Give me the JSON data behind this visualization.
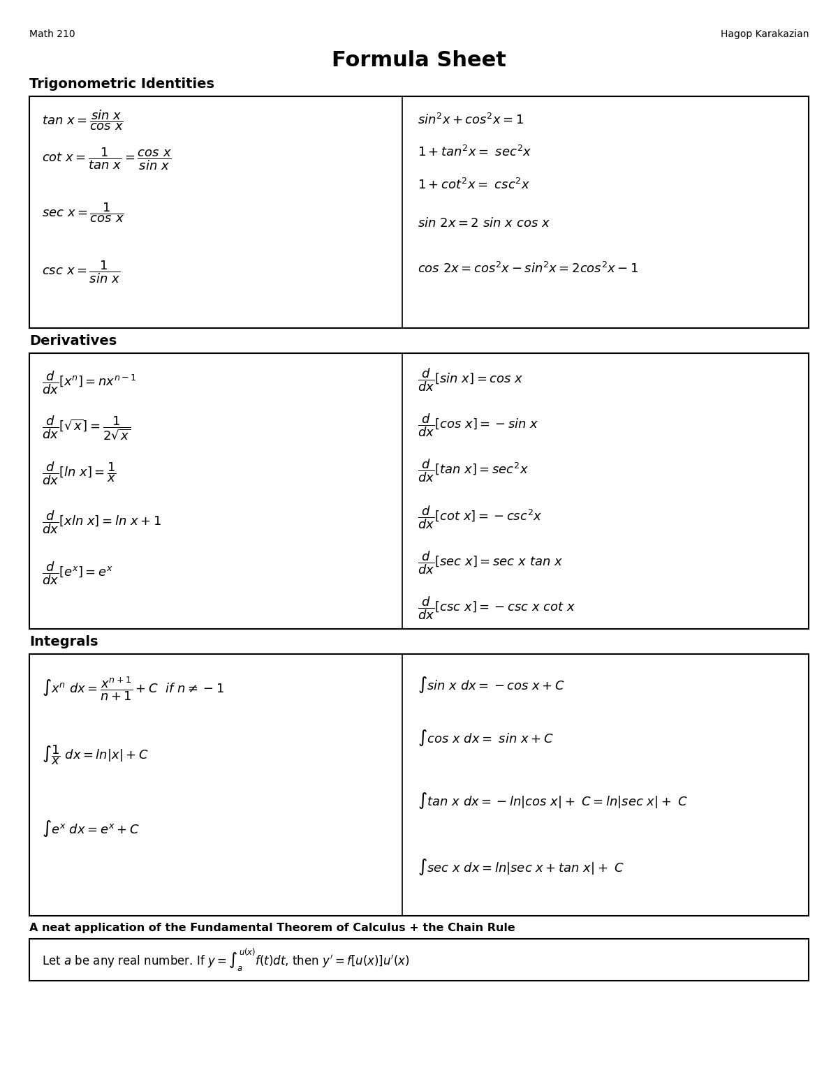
{
  "title": "Formula Sheet",
  "header_left": "Math 210",
  "header_right": "Hagop Karakazian",
  "bg_color": "#ffffff",
  "text_color": "#000000",
  "section_trig": "Trigonometric Identities",
  "section_deriv": "Derivatives",
  "section_integ": "Integrals",
  "section_ftc": "A neat application of the Fundamental Theorem of Calculus + the Chain Rule",
  "trig_left": [
    "$tan\\ x = \\dfrac{sin\\ x}{cos\\ x}$",
    "$cot\\ x = \\dfrac{1}{tan\\ x} = \\dfrac{cos\\ x}{sin\\ x}$",
    "$sec\\ x = \\dfrac{1}{cos\\ x}$",
    "$csc\\ x = \\dfrac{1}{sin\\ x}$"
  ],
  "trig_right": [
    "$sin^2x + cos^2x = 1$",
    "$1 + tan^2x =\\ sec^2x$",
    "$1 + cot^2x =\\ csc^2x$",
    "$sin\\ 2x = 2\\ sin\\ x\\ cos\\ x$",
    "$cos\\ 2x = cos^2x - sin^2x = 2cos^2x - 1$"
  ],
  "deriv_left": [
    "$\\dfrac{d}{dx}[x^n] = nx^{n-1}$",
    "$\\dfrac{d}{dx}[\\sqrt{x}] = \\dfrac{1}{2\\sqrt{x}}$",
    "$\\dfrac{d}{dx}[ln\\ x] = \\dfrac{1}{x}$",
    "$\\dfrac{d}{dx}[xln\\ x] = ln\\ x + 1$",
    "$\\dfrac{d}{dx}[e^x] = e^x$"
  ],
  "deriv_right": [
    "$\\dfrac{d}{dx}[sin\\ x] = cos\\ x$",
    "$\\dfrac{d}{dx}[cos\\ x] = -sin\\ x$",
    "$\\dfrac{d}{dx}[tan\\ x] = sec^2x$",
    "$\\dfrac{d}{dx}[cot\\ x] = -csc^2x$",
    "$\\dfrac{d}{dx}[sec\\ x] = sec\\ x\\ tan\\ x$",
    "$\\dfrac{d}{dx}[csc\\ x] = -csc\\ x\\ cot\\ x$"
  ],
  "integ_left": [
    "$\\int x^n\\ dx = \\dfrac{x^{n+1}}{n+1} + C\\ \\ if\\ n \\neq -1$",
    "$\\int \\dfrac{1}{x}\\ dx = ln|x| + C$",
    "$\\int e^x\\ dx = e^x + C$"
  ],
  "integ_right": [
    "$\\int sin\\ x\\ dx = -cos\\ x + C$",
    "$\\int cos\\ x\\ dx =\\ sin\\ x + C$",
    "$\\int tan\\ x\\ dx = -ln|cos\\ x| +\\ C = ln|sec\\ x| +\\ C$",
    "$\\int sec\\ x\\ dx = ln|sec\\ x + tan\\ x| +\\ C$"
  ],
  "ftc_text": "Let $a$ be any real number. If $y = \\int_{a}^{u(x)} f(t)dt$, then $y^{\\prime} = f[u(x)]u^{\\prime}(x)$",
  "fig_width": 12.0,
  "fig_height": 15.53,
  "dpi": 100
}
